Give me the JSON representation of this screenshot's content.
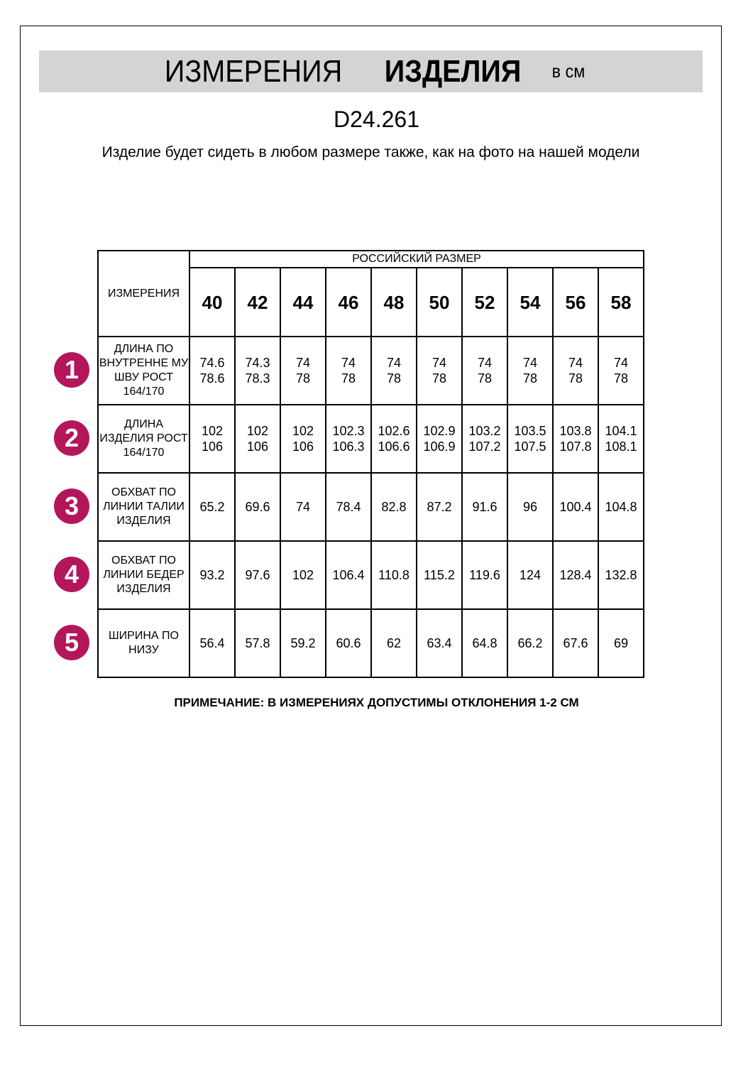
{
  "title": {
    "part1": "ИЗМЕРЕНИЯ",
    "part2": "ИЗДЕЛИЯ",
    "unit": "в см"
  },
  "code": "D24.261",
  "subtitle": "Изделие будет сидеть в любом размере также, как на фото на нашей модели",
  "table": {
    "corner": "ИЗМЕРЕНИЯ",
    "group_header": "РОССИЙСКИЙ РАЗМЕР",
    "sizes": [
      "40",
      "42",
      "44",
      "46",
      "48",
      "50",
      "52",
      "54",
      "56",
      "58"
    ],
    "rows": [
      {
        "num": "1",
        "label": "ДЛИНА ПО ВНУТРЕННЕ МУ ШВУ РОСТ 164/170",
        "values": [
          [
            "74.6",
            "78.6"
          ],
          [
            "74.3",
            "78.3"
          ],
          [
            "74",
            "78"
          ],
          [
            "74",
            "78"
          ],
          [
            "74",
            "78"
          ],
          [
            "74",
            "78"
          ],
          [
            "74",
            "78"
          ],
          [
            "74",
            "78"
          ],
          [
            "74",
            "78"
          ],
          [
            "74",
            "78"
          ]
        ]
      },
      {
        "num": "2",
        "label": "ДЛИНА ИЗДЕЛИЯ РОСТ 164/170",
        "values": [
          [
            "102",
            "106"
          ],
          [
            "102",
            "106"
          ],
          [
            "102",
            "106"
          ],
          [
            "102.3",
            "106.3"
          ],
          [
            "102.6",
            "106.6"
          ],
          [
            "102.9",
            "106.9"
          ],
          [
            "103.2",
            "107.2"
          ],
          [
            "103.5",
            "107.5"
          ],
          [
            "103.8",
            "107.8"
          ],
          [
            "104.1",
            "108.1"
          ]
        ]
      },
      {
        "num": "3",
        "label": "ОБХВАТ ПО ЛИНИИ ТАЛИИ ИЗДЕЛИЯ",
        "values": [
          [
            "65.2"
          ],
          [
            "69.6"
          ],
          [
            "74"
          ],
          [
            "78.4"
          ],
          [
            "82.8"
          ],
          [
            "87.2"
          ],
          [
            "91.6"
          ],
          [
            "96"
          ],
          [
            "100.4"
          ],
          [
            "104.8"
          ]
        ]
      },
      {
        "num": "4",
        "label": "ОБХВАТ ПО ЛИНИИ БЕДЕР ИЗДЕЛИЯ",
        "values": [
          [
            "93.2"
          ],
          [
            "97.6"
          ],
          [
            "102"
          ],
          [
            "106.4"
          ],
          [
            "110.8"
          ],
          [
            "115.2"
          ],
          [
            "119.6"
          ],
          [
            "124"
          ],
          [
            "128.4"
          ],
          [
            "132.8"
          ]
        ]
      },
      {
        "num": "5",
        "label": "ШИРИНА ПО НИЗУ",
        "values": [
          [
            "56.4"
          ],
          [
            "57.8"
          ],
          [
            "59.2"
          ],
          [
            "60.6"
          ],
          [
            "62"
          ],
          [
            "63.4"
          ],
          [
            "64.8"
          ],
          [
            "66.2"
          ],
          [
            "67.6"
          ],
          [
            "69"
          ]
        ]
      }
    ]
  },
  "note": "ПРИМЕЧАНИЕ: В ИЗМЕРЕНИЯХ ДОПУСТИМЫ ОТКЛОНЕНИЯ 1-2 СМ",
  "colors": {
    "badge": "#b3165a",
    "band": "#d4d4d4"
  }
}
